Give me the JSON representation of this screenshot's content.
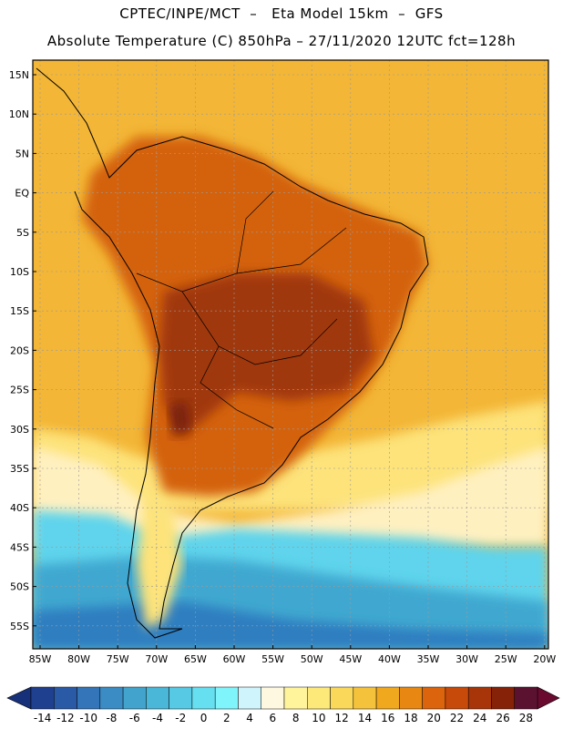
{
  "title_line1": "CPTEC/INPE/MCT  –   Eta Model 15km  –  GFS",
  "title_line2": "Absolute Temperature (C) 850hPa – 27/11/2020 12UTC fct=128h",
  "lat_labels": [
    "15N",
    "10N",
    "5N",
    "EQ",
    "5S",
    "10S",
    "15S",
    "20S",
    "25S",
    "30S",
    "35S",
    "40S",
    "45S",
    "50S",
    "55S"
  ],
  "lon_labels": [
    "85W",
    "80W",
    "75W",
    "70W",
    "65W",
    "60W",
    "55W",
    "50W",
    "45W",
    "40W",
    "35W",
    "30W",
    "25W",
    "20W"
  ],
  "colorbar": {
    "labels": [
      "-14",
      "-12",
      "-10",
      "-8",
      "-6",
      "-4",
      "-2",
      "0",
      "2",
      "4",
      "6",
      "8",
      "10",
      "12",
      "14",
      "16",
      "18",
      "20",
      "22",
      "24",
      "26",
      "28"
    ],
    "colors": [
      "#1f3f8f",
      "#2a5aa6",
      "#3474b8",
      "#3b8cc4",
      "#42a3cc",
      "#4ab7d8",
      "#57c9e4",
      "#66dff0",
      "#80f4fb",
      "#cff4fb",
      "#fff8e1",
      "#fff49b",
      "#fde87a",
      "#fad85a",
      "#f5c23c",
      "#f0a81e",
      "#e88812",
      "#dc640c",
      "#c84a0a",
      "#a8350a",
      "#862208",
      "#5a1230"
    ],
    "underflow_color": "#16307a",
    "overflow_color": "#6a0a2e"
  },
  "palette": {
    "warm_ocean": "#f3b636",
    "hot_land": "#d46210",
    "very_hot": "#a0380c",
    "extreme": "#7a2210",
    "cold_sea": "#5fd4ec",
    "cold_deep": "#3fa8d0",
    "coldest": "#2f7ec0",
    "frontal": "#fff0c0",
    "cool": "#fde37a"
  }
}
